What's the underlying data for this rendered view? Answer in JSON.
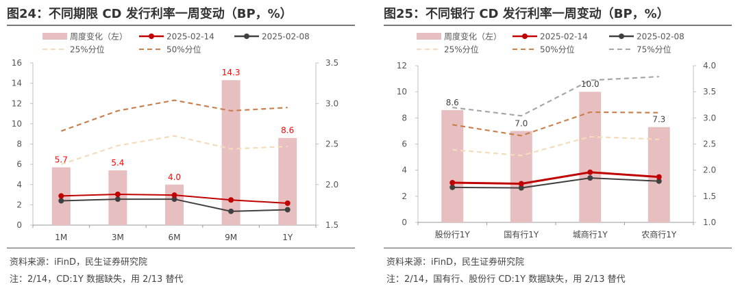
{
  "panels": [
    {
      "title": "图24：不同期限 CD 发行利率一周变动（BP，%）",
      "source": "资料来源：iFinD，民生证券研究院",
      "note": "注：2/14，CD:1Y 数据缺失，用 2/13 替代"
    },
    {
      "title": "图25：不同银行 CD 发行利率一周变动（BP，%）",
      "source": "资料来源：iFinD，民生证券研究院",
      "note": "注：2/14，国有行、股份行 CD:1Y 数据缺失，用 2/13 替代"
    }
  ],
  "chart_data": [
    {
      "type": "bar+line",
      "categories": [
        "1M",
        "3M",
        "6M",
        "9M",
        "1Y"
      ],
      "y_left": {
        "range": [
          0,
          16
        ],
        "ticks": [
          "0",
          "2",
          "4",
          "6",
          "8",
          "10",
          "12",
          "14",
          "16"
        ]
      },
      "y_right": {
        "range": [
          1.5,
          3.5
        ],
        "ticks": [
          "1.5",
          "2.0",
          "2.5",
          "3.0",
          "3.5"
        ]
      },
      "bar_label_color": "#ff0000",
      "series": [
        {
          "name": "周度变化（左）",
          "kind": "bar",
          "axis": "left",
          "color": "#e8bfc0",
          "values": [
            5.7,
            5.4,
            4.0,
            14.3,
            8.6
          ],
          "labels": [
            "5.7",
            "5.4",
            "4.0",
            "14.3",
            "8.6"
          ]
        },
        {
          "name": "2025-02-14",
          "kind": "line-marker",
          "axis": "right",
          "color": "#c00000",
          "values": [
            1.86,
            1.88,
            1.87,
            1.81,
            1.77
          ]
        },
        {
          "name": "2025-02-08",
          "kind": "line-marker",
          "axis": "right",
          "color": "#404040",
          "values": [
            1.8,
            1.82,
            1.82,
            1.67,
            1.69
          ]
        },
        {
          "name": "25%分位",
          "kind": "dash",
          "axis": "right",
          "color": "#f2dcbc",
          "values": [
            2.25,
            2.48,
            2.6,
            2.44,
            2.47
          ]
        },
        {
          "name": "50%分位",
          "kind": "dash",
          "axis": "right",
          "color": "#c8814e",
          "values": [
            2.66,
            2.91,
            3.04,
            2.91,
            2.95
          ]
        }
      ],
      "legend": "top"
    },
    {
      "type": "bar+line",
      "categories": [
        "股份行1Y",
        "国有行1Y",
        "城商行1Y",
        "农商行1Y"
      ],
      "y_left": {
        "range": [
          0,
          12
        ],
        "ticks": [
          "0",
          "2",
          "4",
          "6",
          "8",
          "10",
          "12"
        ]
      },
      "y_right": {
        "range": [
          1.0,
          4.0
        ],
        "ticks": [
          "1.0",
          "1.5",
          "2.0",
          "2.5",
          "3.0",
          "3.5",
          "4.0"
        ]
      },
      "bar_label_color": "#404040",
      "series": [
        {
          "name": "周度变化（左）",
          "kind": "bar",
          "axis": "left",
          "color": "#e8bfc0",
          "values": [
            8.6,
            7.0,
            10.0,
            7.3
          ],
          "labels": [
            "8.6",
            "7.0",
            "10.0",
            "7.3"
          ]
        },
        {
          "name": "2025-02-14",
          "kind": "line-marker",
          "axis": "right",
          "color": "#c00000",
          "values": [
            1.76,
            1.74,
            1.96,
            1.87
          ]
        },
        {
          "name": "2025-02-08",
          "kind": "line-marker",
          "axis": "right",
          "color": "#404040",
          "values": [
            1.67,
            1.66,
            1.85,
            1.79
          ]
        },
        {
          "name": "25%分位",
          "kind": "dash",
          "axis": "right",
          "color": "#f2dcbc",
          "values": [
            2.39,
            2.28,
            2.64,
            2.59
          ]
        },
        {
          "name": "50%分位",
          "kind": "dash",
          "axis": "right",
          "color": "#c8814e",
          "values": [
            2.87,
            2.66,
            3.11,
            3.1
          ]
        },
        {
          "name": "75%分位",
          "kind": "dash",
          "axis": "right",
          "color": "#a6a6a6",
          "values": [
            3.2,
            3.04,
            3.72,
            3.79
          ]
        }
      ],
      "legend": "top"
    }
  ]
}
